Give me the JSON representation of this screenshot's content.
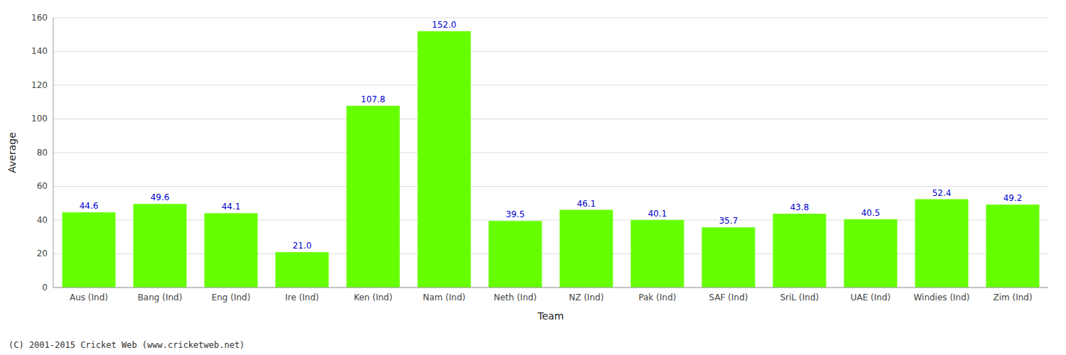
{
  "chart_data": {
    "type": "bar",
    "categories": [
      "Aus (Ind)",
      "Bang (Ind)",
      "Eng (Ind)",
      "Ire (Ind)",
      "Ken (Ind)",
      "Nam (Ind)",
      "Neth (Ind)",
      "NZ (Ind)",
      "Pak (Ind)",
      "SAF (Ind)",
      "SriL (Ind)",
      "UAE (Ind)",
      "Windies (Ind)",
      "Zim (Ind)"
    ],
    "values": [
      44.6,
      49.6,
      44.1,
      21.0,
      107.8,
      152.0,
      39.5,
      46.1,
      40.1,
      35.7,
      43.8,
      40.5,
      52.4,
      49.2
    ],
    "value_labels": [
      "44.6",
      "49.6",
      "44.1",
      "21.0",
      "107.8",
      "152.0",
      "39.5",
      "46.1",
      "40.1",
      "35.7",
      "43.8",
      "40.5",
      "52.4",
      "49.2"
    ],
    "data_labels": true,
    "color": "#66ff00",
    "xlabel": "Team",
    "ylabel": "Average",
    "ylim": [
      0,
      160
    ],
    "yticks": [
      0,
      20,
      40,
      60,
      80,
      100,
      120,
      140,
      160
    ],
    "grid": true,
    "annotations": [
      "(C) 2001-2015 Cricket Web (www.cricketweb.net)"
    ]
  }
}
